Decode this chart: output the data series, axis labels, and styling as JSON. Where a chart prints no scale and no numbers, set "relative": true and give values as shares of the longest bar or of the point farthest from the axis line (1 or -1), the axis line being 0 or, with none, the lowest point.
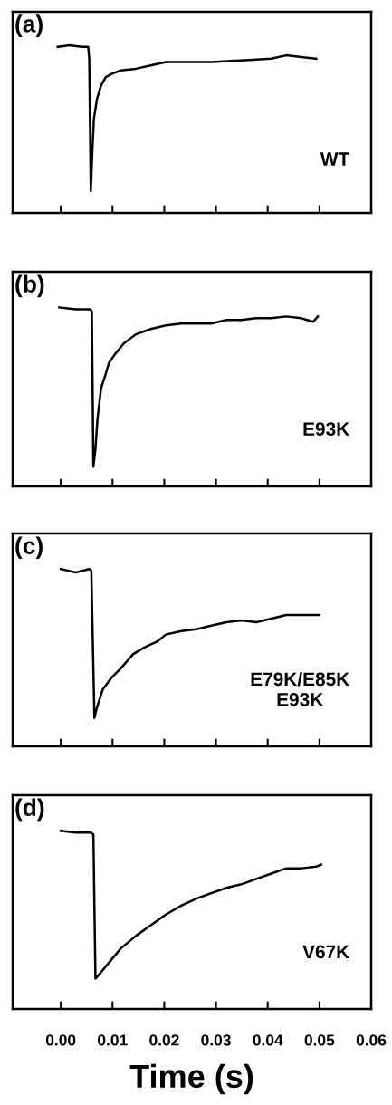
{
  "chart_data": [
    {
      "type": "line",
      "relative": true,
      "xlim": [
        -0.0093,
        0.06
      ],
      "xticks": [
        0.0,
        0.01,
        0.02,
        0.03,
        0.04,
        0.05,
        0.06
      ],
      "tick_labels": false,
      "annotations": [
        "(a)",
        "WT"
      ],
      "series": [
        {
          "color": "#000000",
          "x": [
            -0.0006,
            0.0017,
            0.0041,
            0.0053,
            0.0055,
            0.0058,
            0.0061,
            0.0064,
            0.007,
            0.0078,
            0.0087,
            0.0099,
            0.0116,
            0.0145,
            0.0174,
            0.0203,
            0.0233,
            0.0291,
            0.0349,
            0.0407,
            0.0436,
            0.0465,
            0.0494
          ],
          "values": [
            0.99,
            1.0,
            0.99,
            0.99,
            0.92,
            0.13,
            0.37,
            0.56,
            0.68,
            0.76,
            0.81,
            0.83,
            0.85,
            0.86,
            0.88,
            0.9,
            0.9,
            0.9,
            0.91,
            0.92,
            0.94,
            0.93,
            0.92
          ]
        }
      ]
    },
    {
      "type": "line",
      "relative": true,
      "xlim": [
        -0.0093,
        0.06
      ],
      "xticks": [
        0.0,
        0.01,
        0.02,
        0.03,
        0.04,
        0.05,
        0.06
      ],
      "tick_labels": false,
      "annotations": [
        "(b)",
        "E93K"
      ],
      "series": [
        {
          "color": "#000000",
          "x": [
            -0.0003,
            0.0029,
            0.0057,
            0.006,
            0.0063,
            0.0067,
            0.0071,
            0.0078,
            0.0087,
            0.0093,
            0.0105,
            0.0122,
            0.0145,
            0.0174,
            0.0203,
            0.0233,
            0.0262,
            0.0291,
            0.032,
            0.0349,
            0.0378,
            0.0407,
            0.0436,
            0.0465,
            0.0488,
            0.0497
          ],
          "values": [
            1.0,
            0.99,
            0.99,
            0.98,
            0.11,
            0.21,
            0.38,
            0.55,
            0.63,
            0.69,
            0.74,
            0.8,
            0.85,
            0.88,
            0.9,
            0.91,
            0.91,
            0.91,
            0.93,
            0.93,
            0.94,
            0.94,
            0.95,
            0.94,
            0.92,
            0.95
          ]
        }
      ]
    },
    {
      "type": "line",
      "relative": true,
      "xlim": [
        -0.0093,
        0.06
      ],
      "xticks": [
        0.0,
        0.01,
        0.02,
        0.03,
        0.04,
        0.05,
        0.06
      ],
      "tick_labels": false,
      "annotations": [
        "(c)",
        "E79K/E85K\nE93K"
      ],
      "series": [
        {
          "color": "#000000",
          "x": [
            0.0,
            0.0029,
            0.0055,
            0.0059,
            0.0065,
            0.007,
            0.0081,
            0.0099,
            0.0116,
            0.014,
            0.0163,
            0.0186,
            0.0203,
            0.0233,
            0.0262,
            0.0291,
            0.032,
            0.0349,
            0.0378,
            0.0407,
            0.0436,
            0.0465,
            0.05
          ],
          "values": [
            1.0,
            0.98,
            1.0,
            0.99,
            0.16,
            0.22,
            0.32,
            0.39,
            0.44,
            0.52,
            0.56,
            0.59,
            0.63,
            0.65,
            0.66,
            0.68,
            0.7,
            0.71,
            0.7,
            0.72,
            0.74,
            0.74,
            0.74
          ]
        }
      ]
    },
    {
      "type": "line",
      "relative": true,
      "xlim": [
        -0.0093,
        0.06
      ],
      "xticks": [
        {
          "value": 0.0,
          "label": "0.00"
        },
        {
          "value": 0.01,
          "label": "0.01"
        },
        {
          "value": 0.02,
          "label": "0.02"
        },
        {
          "value": 0.03,
          "label": "0.03"
        },
        {
          "value": 0.04,
          "label": "0.04"
        },
        {
          "value": 0.05,
          "label": "0.05"
        },
        {
          "value": 0.06,
          "label": "0.06"
        }
      ],
      "tick_labels": "x",
      "xlabel": "Time (s)",
      "annotations": [
        "(d)",
        "V67K"
      ],
      "series": [
        {
          "color": "#000000",
          "x": [
            0.0,
            0.0029,
            0.0058,
            0.0063,
            0.0067,
            0.0076,
            0.0093,
            0.0116,
            0.0145,
            0.0174,
            0.0203,
            0.0233,
            0.0262,
            0.0291,
            0.032,
            0.0349,
            0.0378,
            0.0407,
            0.0436,
            0.0465,
            0.0494,
            0.0503
          ],
          "values": [
            1.0,
            0.99,
            0.99,
            0.98,
            0.17,
            0.2,
            0.26,
            0.34,
            0.41,
            0.47,
            0.53,
            0.58,
            0.62,
            0.65,
            0.68,
            0.7,
            0.73,
            0.76,
            0.79,
            0.79,
            0.8,
            0.81
          ]
        }
      ]
    }
  ]
}
